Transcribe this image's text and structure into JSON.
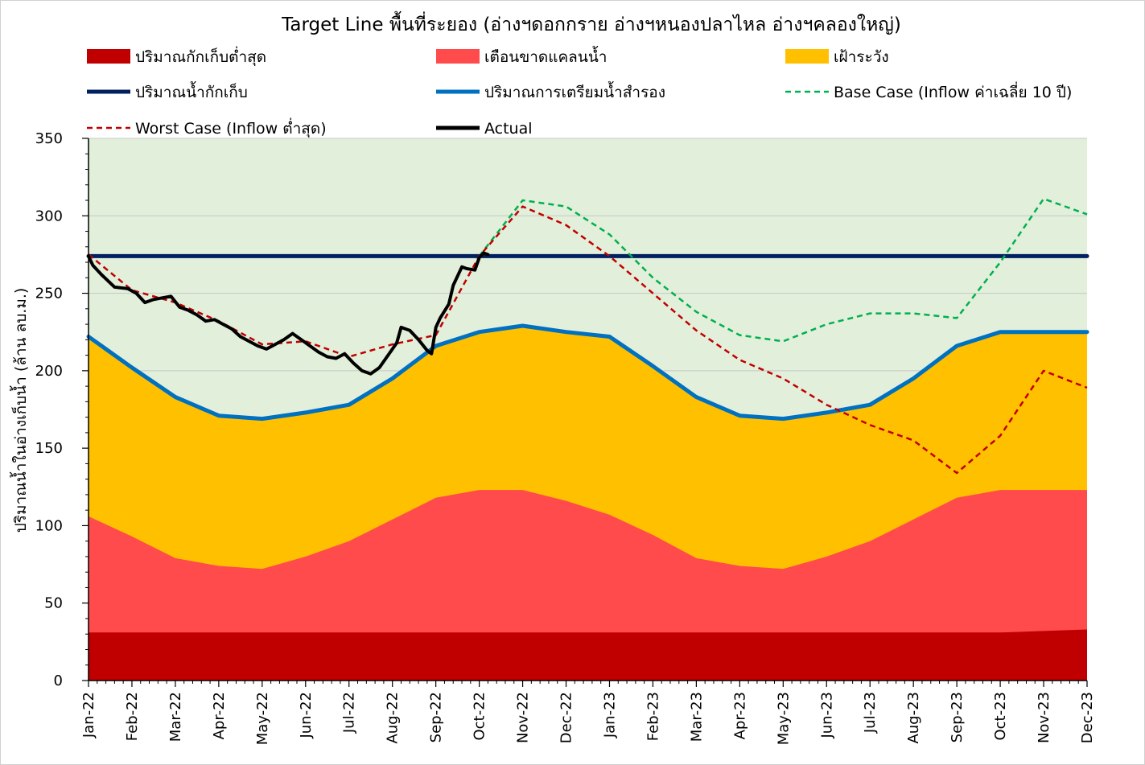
{
  "chart_data": {
    "type": "area",
    "title": "Target Line พื้นที่ระยอง (อ่างฯดอกกราย อ่างฯหนองปลาไหล อ่างฯคลองใหญ่)",
    "ylabel": "ปริมาณน้ำในอ่างเก็บน้ำ (ล้าน ลบ.ม.)",
    "xlabel": "",
    "ylim": [
      0,
      350
    ],
    "yticks": [
      0,
      50,
      100,
      150,
      200,
      250,
      300,
      350
    ],
    "categories": [
      "Jan-22",
      "Feb-22",
      "Mar-22",
      "Apr-22",
      "May-22",
      "Jun-22",
      "Jul-22",
      "Aug-22",
      "Sep-22",
      "Oct-22",
      "Nov-22",
      "Dec-22",
      "Jan-23",
      "Feb-23",
      "Mar-23",
      "Apr-23",
      "May-23",
      "Jun-23",
      "Jul-23",
      "Aug-23",
      "Sep-23",
      "Oct-23",
      "Nov-23",
      "Dec-23"
    ],
    "grid": true,
    "legend_position": "top",
    "plot_background": "#e2efda",
    "areas": [
      {
        "name": "ปริมาณกักเก็บต่ำสุด",
        "color": "#c00000",
        "values": [
          31,
          31,
          31,
          31,
          31,
          31,
          31,
          31,
          31,
          31,
          31,
          31,
          31,
          31,
          31,
          31,
          31,
          31,
          31,
          31,
          31,
          31,
          32,
          33
        ]
      },
      {
        "name": "เตือนขาดแคลนน้ำ",
        "color": "#ff4b4b",
        "values": [
          106,
          93,
          79,
          74,
          72,
          80,
          90,
          104,
          118,
          123,
          123,
          116,
          107,
          94,
          79,
          74,
          72,
          80,
          90,
          104,
          118,
          123,
          123,
          123
        ]
      },
      {
        "name": "เฝ้าระวัง",
        "color": "#ffc000",
        "values": [
          222,
          202,
          183,
          171,
          169,
          173,
          178,
          195,
          216,
          225,
          229,
          225,
          222,
          203,
          183,
          171,
          169,
          173,
          178,
          195,
          216,
          225,
          225,
          225
        ]
      }
    ],
    "lines": [
      {
        "name": "ปริมาณน้ำกักเก็บ",
        "color": "#002060",
        "style": "solid",
        "values": [
          274,
          274,
          274,
          274,
          274,
          274,
          274,
          274,
          274,
          274,
          274,
          274,
          274,
          274,
          274,
          274,
          274,
          274,
          274,
          274,
          274,
          274,
          274,
          274
        ]
      },
      {
        "name": "ปริมาณการเตรียมน้ำสำรอง",
        "color": "#0070c0",
        "style": "solid",
        "values": [
          222,
          202,
          183,
          171,
          169,
          173,
          178,
          195,
          216,
          225,
          229,
          225,
          222,
          203,
          183,
          171,
          169,
          173,
          178,
          195,
          216,
          225,
          225,
          225
        ]
      },
      {
        "name": "Base Case (Inflow ค่าเฉลี่ย 10 ปี)",
        "color": "#00b050",
        "style": "dashed",
        "x_index": [
          9,
          10,
          11,
          12,
          13,
          14,
          15,
          16,
          17,
          18,
          19,
          20,
          21,
          22,
          23
        ],
        "values": [
          274,
          310,
          306,
          288,
          260,
          238,
          223,
          219,
          230,
          237,
          237,
          234,
          270,
          311,
          301
        ]
      },
      {
        "name": "Worst Case (Inflow ต่ำสุด)",
        "color": "#c00000",
        "style": "dashed",
        "x_index": [
          0,
          1,
          2,
          3,
          4,
          5,
          6,
          7,
          8,
          9,
          10,
          11,
          12,
          13,
          14,
          15,
          16,
          17,
          18,
          19,
          20,
          21,
          22,
          23
        ],
        "values": [
          275,
          252,
          244,
          232,
          217,
          219,
          209,
          217,
          223,
          274,
          306,
          294,
          274,
          250,
          226,
          207,
          195,
          178,
          165,
          155,
          134,
          158,
          200,
          189
        ]
      },
      {
        "name": "Actual",
        "color": "#000000",
        "style": "solid",
        "width": "thick",
        "x_index": [
          0,
          0.1,
          0.3,
          0.6,
          0.9,
          1.1,
          1.3,
          1.5,
          1.7,
          1.9,
          2.1,
          2.3,
          2.5,
          2.7,
          2.9,
          3.1,
          3.3,
          3.5,
          3.7,
          3.9,
          4.1,
          4.3,
          4.5,
          4.7,
          4.9,
          5.1,
          5.3,
          5.5,
          5.7,
          5.9,
          6.1,
          6.3,
          6.5,
          6.7,
          6.9,
          7.1,
          7.2,
          7.4,
          7.6,
          7.8,
          7.9,
          8.0,
          8.1,
          8.3,
          8.4,
          8.6,
          8.7,
          8.9,
          9.0,
          9.1,
          9.2
        ],
        "values": [
          274,
          268,
          262,
          254,
          253,
          250,
          244,
          246,
          247,
          248,
          241,
          239,
          236,
          232,
          233,
          230,
          227,
          222,
          219,
          216,
          214,
          217,
          220,
          224,
          220,
          216,
          212,
          209,
          208,
          211,
          205,
          200,
          198,
          202,
          210,
          218,
          228,
          226,
          220,
          213,
          211,
          228,
          234,
          243,
          255,
          267,
          266,
          265,
          273,
          276,
          275
        ]
      }
    ],
    "legend": [
      {
        "label": "ปริมาณกักเก็บต่ำสุด",
        "kind": "area",
        "color": "#c00000"
      },
      {
        "label": "เตือนขาดแคลนน้ำ",
        "kind": "area",
        "color": "#ff4b4b"
      },
      {
        "label": "เฝ้าระวัง",
        "kind": "area",
        "color": "#ffc000"
      },
      {
        "label": "ปริมาณน้ำกักเก็บ",
        "kind": "line",
        "color": "#002060",
        "style": "solid"
      },
      {
        "label": "ปริมาณการเตรียมน้ำสำรอง",
        "kind": "line",
        "color": "#0070c0",
        "style": "solid"
      },
      {
        "label": "Base Case (Inflow ค่าเฉลี่ย 10 ปี)",
        "kind": "line",
        "color": "#00b050",
        "style": "dashed"
      },
      {
        "label": "Worst Case (Inflow ต่ำสุด)",
        "kind": "line",
        "color": "#c00000",
        "style": "dashed"
      },
      {
        "label": "Actual",
        "kind": "line",
        "color": "#000000",
        "style": "solid"
      }
    ]
  }
}
